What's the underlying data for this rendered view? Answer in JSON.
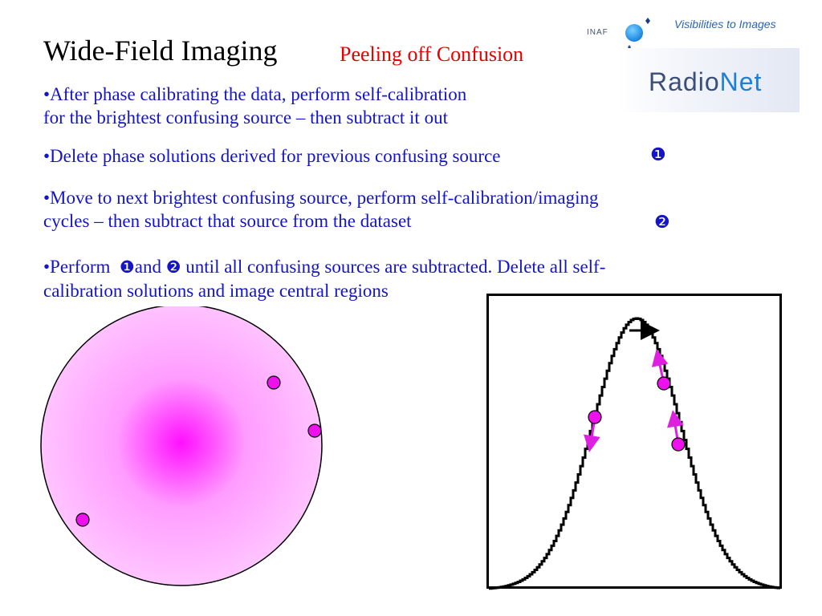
{
  "slide": {
    "title": "Wide-Field Imaging",
    "subtitle": "Peeling off Confusion"
  },
  "logos": {
    "inaf": "INAF",
    "tagline": "Visibilities to Images",
    "radionet_part1": "Radio",
    "radionet_part2": "Net"
  },
  "bullets": [
    {
      "lines": [
        "•After phase calibrating the data, perform self-calibration",
        "for the brightest confusing source – then subtract it out"
      ]
    },
    {
      "lines": [
        "•Delete phase solutions derived for previous confusing source"
      ],
      "marker": "❶"
    },
    {
      "lines": [
        "•Move to next brightest confusing source, perform self-calibration/imaging",
        "cycles – then subtract that source from the dataset"
      ],
      "marker": "❷"
    },
    {
      "line1_prefix": "•Perform  ",
      "marker1": "❶",
      "and_word": "and ",
      "marker2": "❷",
      "line1_suffix": " until all confusing sources are subtracted. Delete all self-",
      "line2": "calibration solutions and image central regions"
    }
  ],
  "colors": {
    "title": "#000000",
    "subtitle": "#e60000",
    "body_text": "#1414c8",
    "source_fill": "#ee11ee",
    "circle_center": "#ff10ff",
    "circle_edge": "#ffc4ff",
    "arrow": "#e020e0"
  },
  "figure": {
    "left_panel": "field of view with confusing sources",
    "right_panel": "primary beam response with source positions"
  }
}
